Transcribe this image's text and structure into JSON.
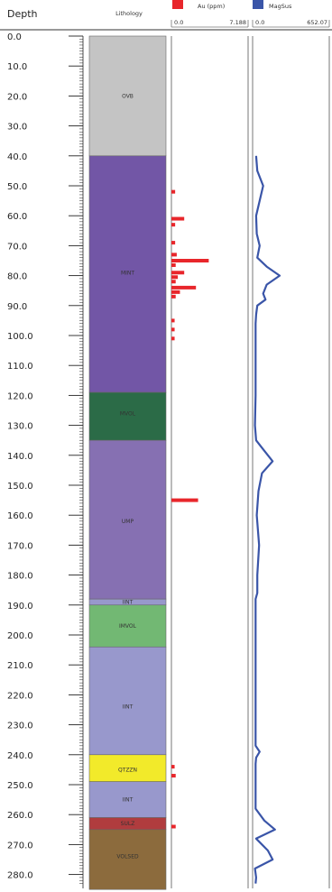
{
  "header": {
    "depth_label": "Depth",
    "lithology_label": "Lithology",
    "au": {
      "name": "Au (ppm)",
      "min": "0.0",
      "max": "7.188",
      "color": "#e8262b"
    },
    "magsus": {
      "name": "MagSus",
      "min": "0.0",
      "max": "652.07",
      "color": "#3a55a8"
    }
  },
  "chart_data": {
    "type": "well-log",
    "y_axis": {
      "label": "Depth",
      "range": [
        0,
        282
      ],
      "tick_step": 10,
      "inverted": true
    },
    "depth_ticks": [
      "0.0",
      "10.0",
      "20.0",
      "30.0",
      "40.0",
      "50.0",
      "60.0",
      "70.0",
      "80.0",
      "90.0",
      "100.0",
      "110.0",
      "120.0",
      "130.0",
      "140.0",
      "150.0",
      "160.0",
      "170.0",
      "180.0",
      "190.0",
      "200.0",
      "210.0",
      "220.0",
      "230.0",
      "240.0",
      "250.0",
      "260.0",
      "270.0",
      "280.0"
    ],
    "lithology": [
      {
        "code": "OVB",
        "top": 0,
        "bottom": 40,
        "color": "#c4c4c4",
        "label_depth": 20
      },
      {
        "code": "MINT",
        "top": 40,
        "bottom": 119,
        "color": "#7256a6",
        "label_depth": 79
      },
      {
        "code": "MVOL",
        "top": 119,
        "bottom": 135,
        "color": "#2b6b47",
        "label_depth": 126
      },
      {
        "code": "UMP",
        "top": 135,
        "bottom": 188,
        "color": "#8670b2",
        "label_depth": 162
      },
      {
        "code": "IINT",
        "top": 188,
        "bottom": 190,
        "color": "#9898cc",
        "label_depth": 189
      },
      {
        "code": "IMVOL",
        "top": 190,
        "bottom": 204,
        "color": "#72b873",
        "label_depth": 197
      },
      {
        "code": "IINT",
        "top": 204,
        "bottom": 240,
        "color": "#9898cc",
        "label_depth": 224
      },
      {
        "code": "QTZZN",
        "top": 240,
        "bottom": 249,
        "color": "#f2ea2a",
        "label_depth": 245
      },
      {
        "code": "IINT",
        "top": 249,
        "bottom": 261,
        "color": "#9898cc",
        "label_depth": 255
      },
      {
        "code": "SULZ",
        "top": 261,
        "bottom": 265,
        "color": "#b03c3e",
        "label_depth": 263
      },
      {
        "code": "VOLSED",
        "top": 265,
        "bottom": 285,
        "color": "#8c6b3d",
        "label_depth": 274
      }
    ],
    "au_ppm": {
      "range": [
        0,
        7.188
      ],
      "intervals": [
        {
          "depth": 52,
          "value": 0.35
        },
        {
          "depth": 61,
          "value": 1.2
        },
        {
          "depth": 63,
          "value": 0.35
        },
        {
          "depth": 69,
          "value": 0.35
        },
        {
          "depth": 73,
          "value": 0.5
        },
        {
          "depth": 75,
          "value": 3.5
        },
        {
          "depth": 76.5,
          "value": 0.4
        },
        {
          "depth": 79,
          "value": 1.2
        },
        {
          "depth": 80.5,
          "value": 0.6
        },
        {
          "depth": 82,
          "value": 0.4
        },
        {
          "depth": 84,
          "value": 2.3
        },
        {
          "depth": 85.5,
          "value": 0.8
        },
        {
          "depth": 87,
          "value": 0.4
        },
        {
          "depth": 95,
          "value": 0.3
        },
        {
          "depth": 98,
          "value": 0.3
        },
        {
          "depth": 101,
          "value": 0.3
        },
        {
          "depth": 155,
          "value": 2.5
        },
        {
          "depth": 244,
          "value": 0.3
        },
        {
          "depth": 247,
          "value": 0.4
        },
        {
          "depth": 264,
          "value": 0.4
        }
      ]
    },
    "magsus": {
      "range": [
        0,
        652.07
      ],
      "points": [
        [
          40,
          30
        ],
        [
          45,
          40
        ],
        [
          50,
          90
        ],
        [
          55,
          60
        ],
        [
          60,
          30
        ],
        [
          66,
          35
        ],
        [
          70,
          60
        ],
        [
          74,
          40
        ],
        [
          77,
          120
        ],
        [
          80,
          230
        ],
        [
          83,
          120
        ],
        [
          86,
          90
        ],
        [
          88,
          110
        ],
        [
          90,
          40
        ],
        [
          93,
          30
        ],
        [
          96,
          25
        ],
        [
          110,
          25
        ],
        [
          120,
          25
        ],
        [
          130,
          20
        ],
        [
          135,
          30
        ],
        [
          138,
          90
        ],
        [
          142,
          170
        ],
        [
          146,
          80
        ],
        [
          152,
          50
        ],
        [
          160,
          35
        ],
        [
          170,
          55
        ],
        [
          180,
          40
        ],
        [
          186,
          40
        ],
        [
          188,
          25
        ],
        [
          195,
          25
        ],
        [
          220,
          25
        ],
        [
          237,
          25
        ],
        [
          239,
          60
        ],
        [
          241,
          30
        ],
        [
          243,
          25
        ],
        [
          258,
          25
        ],
        [
          262,
          100
        ],
        [
          265,
          190
        ],
        [
          268,
          30
        ],
        [
          272,
          130
        ],
        [
          275,
          170
        ],
        [
          278,
          20
        ],
        [
          281,
          30
        ],
        [
          283,
          25
        ]
      ]
    }
  }
}
